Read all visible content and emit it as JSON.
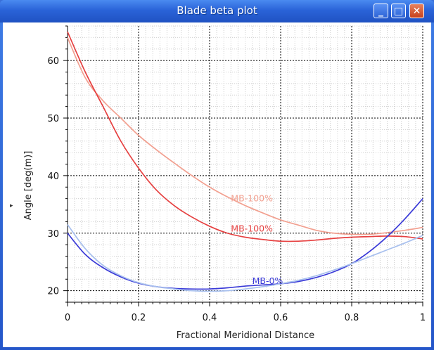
{
  "window": {
    "title": "Blade beta plot",
    "minimize_glyph": "_",
    "maximize_glyph": "□",
    "close_glyph": "✕"
  },
  "splitter_glyph": "▸",
  "chart_data": {
    "type": "line",
    "xlabel": "Fractional Meridional Distance",
    "ylabel": "Angle [deg(m)]",
    "xlim": [
      0,
      1
    ],
    "ylim": [
      18,
      66
    ],
    "xticks": [
      "0",
      "0.2",
      "0.4",
      "0.6",
      "0.8",
      "1"
    ],
    "yticks": [
      "20",
      "30",
      "40",
      "50",
      "60"
    ],
    "grid": true,
    "series": [
      {
        "name": "MB-100%",
        "color": "#f2a090",
        "x": [
          0,
          0.05,
          0.1,
          0.15,
          0.2,
          0.25,
          0.3,
          0.35,
          0.4,
          0.45,
          0.5,
          0.55,
          0.6,
          0.65,
          0.7,
          0.75,
          0.8,
          0.85,
          0.9,
          0.95,
          1.0
        ],
        "y": [
          64,
          57,
          53,
          50,
          47,
          44.5,
          42.2,
          40,
          38,
          36.3,
          34.8,
          33.5,
          32.3,
          31.4,
          30.5,
          30,
          29.8,
          29.8,
          30.1,
          30.5,
          31
        ]
      },
      {
        "name": "MB-100%",
        "color": "#e64040",
        "x": [
          0,
          0.05,
          0.1,
          0.15,
          0.2,
          0.25,
          0.3,
          0.35,
          0.4,
          0.45,
          0.5,
          0.55,
          0.6,
          0.65,
          0.7,
          0.75,
          0.8,
          0.85,
          0.9,
          0.95,
          1.0
        ],
        "y": [
          65,
          58,
          52,
          46,
          41.3,
          37.5,
          34.8,
          32.8,
          31.2,
          30,
          29.3,
          28.9,
          28.6,
          28.6,
          28.8,
          29.1,
          29.3,
          29.4,
          29.5,
          29.4,
          29
        ]
      },
      {
        "name": "MB-0%",
        "color": "#3a3ad8",
        "x": [
          0,
          0.05,
          0.1,
          0.15,
          0.2,
          0.25,
          0.3,
          0.35,
          0.4,
          0.45,
          0.5,
          0.55,
          0.6,
          0.65,
          0.7,
          0.75,
          0.8,
          0.85,
          0.9,
          0.95,
          1.0
        ],
        "y": [
          30,
          26.3,
          24,
          22.4,
          21.3,
          20.7,
          20.4,
          20.3,
          20.3,
          20.5,
          20.8,
          21,
          21.2,
          21.6,
          22.3,
          23.3,
          24.7,
          26.8,
          29.4,
          32.5,
          36
        ]
      },
      {
        "name": "MB-0%",
        "color": "#a8c0ee",
        "x": [
          0,
          0.05,
          0.1,
          0.15,
          0.2,
          0.25,
          0.3,
          0.35,
          0.4,
          0.45,
          0.5,
          0.55,
          0.6,
          0.65,
          0.7,
          0.75,
          0.8,
          0.85,
          0.9,
          0.95,
          1.0
        ],
        "y": [
          31.5,
          27.3,
          24.4,
          22.6,
          21.4,
          20.7,
          20.3,
          20,
          19.9,
          20,
          20.3,
          20.7,
          21.2,
          21.8,
          22.6,
          23.6,
          24.7,
          25.9,
          27.1,
          28.3,
          29.6
        ]
      }
    ],
    "annotations": [
      {
        "text": "MB-100%",
        "x": 0.46,
        "y": 35.5,
        "color": "#f2a090"
      },
      {
        "text": "MB-100%",
        "x": 0.46,
        "y": 30.3,
        "color": "#e64040"
      },
      {
        "text": "MB-0%",
        "x": 0.52,
        "y": 21.2,
        "color": "#3a3ad8"
      }
    ]
  }
}
